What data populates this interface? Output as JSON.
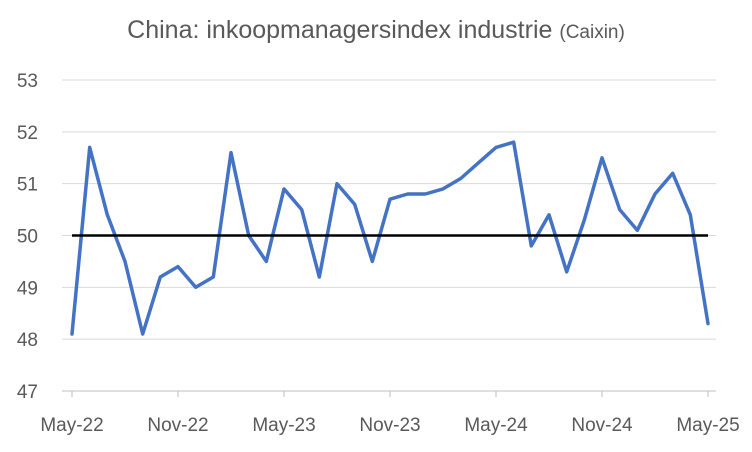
{
  "chart_data": {
    "type": "line",
    "title": "China: inkoopmanagersindex industrie",
    "subtitle": "(Caixin)",
    "xlabel": "",
    "ylabel": "",
    "ylim": [
      47,
      53
    ],
    "yticks": [
      47,
      48,
      49,
      50,
      51,
      52,
      53
    ],
    "x_tick_labels": [
      "May-22",
      "Nov-22",
      "May-23",
      "Nov-23",
      "May-24",
      "Nov-24",
      "May-25"
    ],
    "grid": "horizontal",
    "legend": "none",
    "reference_line": 50,
    "line_color": "#4472C4",
    "reference_color": "#000000",
    "x": [
      "2022-05",
      "2022-06",
      "2022-07",
      "2022-08",
      "2022-09",
      "2022-10",
      "2022-11",
      "2022-12",
      "2023-01",
      "2023-02",
      "2023-03",
      "2023-04",
      "2023-05",
      "2023-06",
      "2023-07",
      "2023-08",
      "2023-09",
      "2023-10",
      "2023-11",
      "2023-12",
      "2024-01",
      "2024-02",
      "2024-03",
      "2024-04",
      "2024-05",
      "2024-06",
      "2024-07",
      "2024-08",
      "2024-09",
      "2024-10",
      "2024-11",
      "2024-12",
      "2025-01",
      "2025-02",
      "2025-03",
      "2025-04",
      "2025-05"
    ],
    "values": [
      48.1,
      51.7,
      50.4,
      49.5,
      48.1,
      49.2,
      49.4,
      49.0,
      49.2,
      51.6,
      50.0,
      49.5,
      50.9,
      50.5,
      49.2,
      51.0,
      50.6,
      49.5,
      50.7,
      50.8,
      50.8,
      50.9,
      51.1,
      51.4,
      51.7,
      51.8,
      49.8,
      50.4,
      49.3,
      50.3,
      51.5,
      50.5,
      50.1,
      50.8,
      51.2,
      50.4,
      48.3
    ]
  }
}
